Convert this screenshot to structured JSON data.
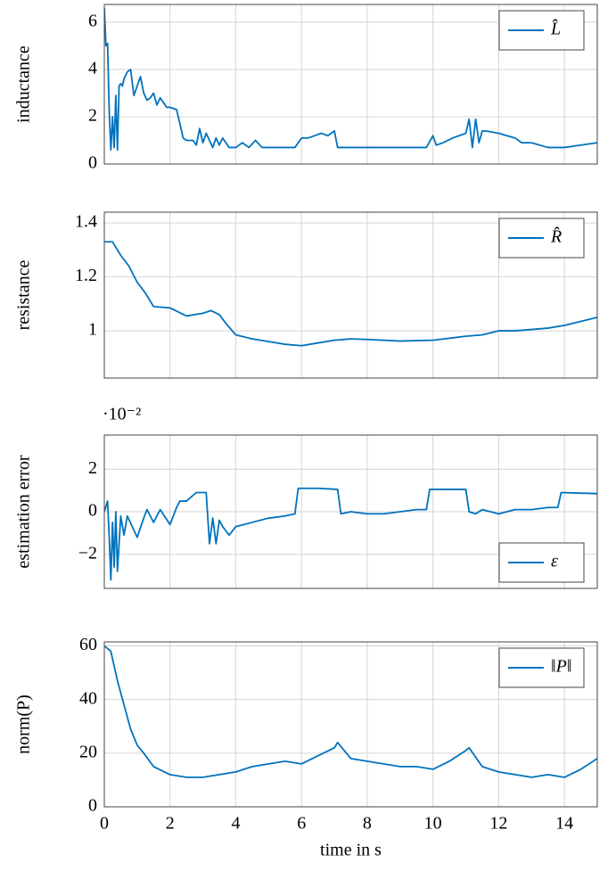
{
  "chart_data": [
    {
      "type": "line",
      "ylabel": "inductance",
      "legend": "upper right",
      "grid": true,
      "xlim": [
        0,
        15
      ],
      "xticks": [
        0,
        2,
        4,
        6,
        8,
        10,
        12,
        14
      ],
      "ylim": [
        0,
        6.75
      ],
      "yticks": [
        0,
        2,
        4,
        6
      ],
      "x": [
        0,
        0.05,
        0.1,
        0.15,
        0.2,
        0.25,
        0.3,
        0.35,
        0.4,
        0.45,
        0.5,
        0.55,
        0.6,
        0.7,
        0.8,
        0.9,
        1.0,
        1.1,
        1.2,
        1.3,
        1.4,
        1.5,
        1.6,
        1.7,
        1.8,
        1.9,
        2.0,
        2.2,
        2.4,
        2.5,
        2.6,
        2.7,
        2.8,
        2.9,
        3.0,
        3.1,
        3.2,
        3.3,
        3.4,
        3.5,
        3.6,
        3.8,
        4.0,
        4.2,
        4.4,
        4.6,
        4.8,
        5.0,
        5.2,
        5.4,
        5.6,
        5.8,
        6.0,
        6.2,
        6.4,
        6.6,
        6.8,
        7.0,
        7.1,
        7.15,
        7.3,
        7.6,
        8.0,
        8.5,
        9.0,
        9.5,
        9.8,
        10.0,
        10.1,
        10.3,
        10.6,
        11.0,
        11.1,
        11.2,
        11.3,
        11.4,
        11.5,
        11.6,
        12.0,
        12.5,
        12.7,
        13.0,
        13.5,
        13.7,
        14.0,
        14.5,
        15.0
      ],
      "series": [
        {
          "name": "L̂",
          "color": "#0072bd",
          "values": [
            6.6,
            5.0,
            5.1,
            2.2,
            0.6,
            2.0,
            0.7,
            2.9,
            0.6,
            3.3,
            3.4,
            3.3,
            3.6,
            3.9,
            4.0,
            2.9,
            3.3,
            3.7,
            3.0,
            2.7,
            2.8,
            3.0,
            2.5,
            2.8,
            2.6,
            2.4,
            2.4,
            2.3,
            1.1,
            1.0,
            1.0,
            1.0,
            0.8,
            1.5,
            0.9,
            1.3,
            1.0,
            0.7,
            1.1,
            0.8,
            1.1,
            0.7,
            0.7,
            0.9,
            0.7,
            1.0,
            0.7,
            0.7,
            0.7,
            0.7,
            0.7,
            0.7,
            1.1,
            1.1,
            1.2,
            1.3,
            1.2,
            1.4,
            0.7,
            0.7,
            0.7,
            0.7,
            0.7,
            0.7,
            0.7,
            0.7,
            0.7,
            1.2,
            0.8,
            0.9,
            1.1,
            1.3,
            1.9,
            0.7,
            1.9,
            0.9,
            1.4,
            1.4,
            1.3,
            1.1,
            0.9,
            0.9,
            0.7,
            0.7,
            0.7,
            0.8,
            0.9
          ]
        }
      ]
    },
    {
      "type": "line",
      "ylabel": "resistance",
      "legend": "upper right",
      "grid": true,
      "xlim": [
        0,
        15
      ],
      "xticks": [
        0,
        2,
        4,
        6,
        8,
        10,
        12,
        14
      ],
      "ylim": [
        0.825,
        1.44
      ],
      "yticks": [
        1,
        1.2,
        1.4
      ],
      "x": [
        0,
        0.25,
        0.5,
        0.75,
        1,
        1.25,
        1.5,
        2,
        2.5,
        3,
        3.25,
        3.5,
        3.75,
        4,
        4.5,
        5,
        5.5,
        6,
        6.5,
        7,
        7.5,
        8,
        9,
        10,
        11,
        11.5,
        12,
        12.5,
        13,
        13.5,
        14,
        14.5,
        15
      ],
      "series": [
        {
          "name": "R̂",
          "color": "#0072bd",
          "values": [
            1.33,
            1.33,
            1.28,
            1.24,
            1.18,
            1.14,
            1.09,
            1.085,
            1.055,
            1.065,
            1.075,
            1.06,
            1.02,
            0.985,
            0.97,
            0.96,
            0.95,
            0.945,
            0.955,
            0.965,
            0.97,
            0.968,
            0.962,
            0.965,
            0.98,
            0.985,
            1.0,
            1.0,
            1.005,
            1.01,
            1.02,
            1.035,
            1.05
          ]
        }
      ]
    },
    {
      "type": "line",
      "ylabel": "estimation error",
      "y_multiplier": "·10⁻²",
      "legend": "lower right",
      "grid": true,
      "xlim": [
        0,
        15
      ],
      "xticks": [
        0,
        2,
        4,
        6,
        8,
        10,
        12,
        14
      ],
      "ylim": [
        -3.6,
        3.6
      ],
      "yticks": [
        {
          "value": -2,
          "label": "−2"
        },
        0,
        2
      ],
      "x": [
        0,
        0.1,
        0.15,
        0.2,
        0.25,
        0.3,
        0.35,
        0.4,
        0.5,
        0.6,
        0.7,
        1.0,
        1.2,
        1.3,
        1.5,
        1.7,
        2.0,
        2.2,
        2.3,
        2.5,
        2.8,
        3.1,
        3.2,
        3.3,
        3.4,
        3.5,
        3.6,
        3.8,
        4.0,
        4.5,
        5.0,
        5.5,
        5.8,
        5.9,
        6.5,
        7.1,
        7.2,
        7.5,
        8,
        8.5,
        9,
        9.5,
        9.8,
        9.9,
        10.5,
        11,
        11.1,
        11.3,
        11.5,
        12,
        12.5,
        13,
        13.5,
        13.8,
        13.9,
        15
      ],
      "series": [
        {
          "name": "ε",
          "color": "#0072bd",
          "values": [
            0,
            0.5,
            -1.2,
            -3.2,
            -0.5,
            -2.6,
            0,
            -2.8,
            -0.2,
            -1.1,
            -0.2,
            -1.2,
            -0.3,
            0.1,
            -0.5,
            0.1,
            -0.6,
            0.2,
            0.5,
            0.5,
            0.9,
            0.9,
            -1.5,
            -0.3,
            -1.5,
            -0.4,
            -0.7,
            -1.1,
            -0.7,
            -0.5,
            -0.3,
            -0.2,
            -0.1,
            1.1,
            1.1,
            1.05,
            -0.1,
            0,
            -0.1,
            -0.1,
            0,
            0.1,
            0.1,
            1.05,
            1.05,
            1.05,
            0,
            -0.1,
            0.1,
            -0.1,
            0.1,
            0.1,
            0.2,
            0.2,
            0.9,
            0.85
          ]
        }
      ]
    },
    {
      "type": "line",
      "ylabel": "norm(P)",
      "xlabel": "time in s",
      "legend": "upper right",
      "grid": true,
      "xlim": [
        0,
        15
      ],
      "xticks": [
        0,
        2,
        4,
        6,
        8,
        10,
        12,
        14
      ],
      "ylim": [
        0,
        61.5
      ],
      "yticks": [
        0,
        20,
        40,
        60
      ],
      "x": [
        0,
        0.2,
        0.4,
        0.6,
        0.8,
        1.0,
        1.2,
        1.5,
        2.0,
        2.5,
        3.0,
        3.5,
        4.0,
        4.5,
        5.0,
        5.5,
        6.0,
        6.5,
        7.0,
        7.1,
        7.5,
        8.0,
        8.5,
        9.0,
        9.5,
        10.0,
        10.5,
        11.0,
        11.1,
        11.5,
        12.0,
        12.5,
        13.0,
        13.5,
        14.0,
        14.5,
        15.0
      ],
      "series": [
        {
          "name": "‖P‖",
          "color": "#0072bd",
          "values": [
            60,
            58,
            47,
            38,
            29,
            23,
            20,
            15,
            12,
            11,
            11,
            12,
            13,
            15,
            16,
            17,
            16,
            19,
            22,
            24,
            18,
            17,
            16,
            15,
            15,
            14,
            17,
            21,
            22,
            15,
            13,
            12,
            11,
            12,
            11,
            14,
            18
          ]
        }
      ]
    }
  ]
}
